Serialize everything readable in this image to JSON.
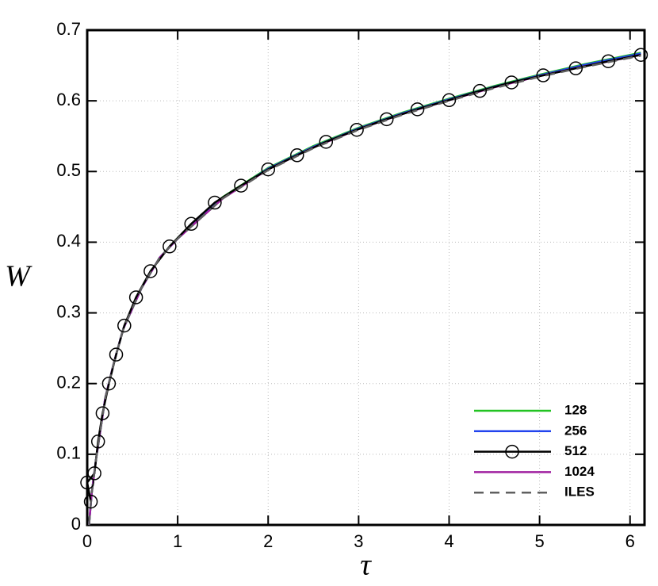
{
  "chart_data": {
    "type": "line",
    "x_label": "τ",
    "y_label": "W",
    "xlim": [
      0,
      6.16
    ],
    "ylim": [
      0,
      0.7
    ],
    "xticks": [
      0,
      1,
      2,
      3,
      4,
      5,
      6
    ],
    "yticks": [
      0,
      0.1,
      0.2,
      0.3,
      0.4,
      0.5,
      0.6,
      0.7
    ],
    "grid": true,
    "legend": "lower right",
    "series": [
      {
        "name": "128",
        "color": "#22c322",
        "style": "solid",
        "x": [
          0.02,
          0.05,
          0.1,
          0.2,
          0.3,
          0.4,
          0.6,
          0.8,
          1,
          1.5,
          2,
          2.5,
          3,
          3.5,
          4,
          4.5,
          5,
          5.5,
          6.12
        ],
        "values": [
          0.0,
          0.045,
          0.095,
          0.18,
          0.232,
          0.278,
          0.335,
          0.378,
          0.406,
          0.464,
          0.505,
          0.536,
          0.562,
          0.584,
          0.603,
          0.621,
          0.637,
          0.652,
          0.668
        ]
      },
      {
        "name": "256",
        "color": "#2244ee",
        "style": "solid",
        "x": [
          0.02,
          0.05,
          0.1,
          0.2,
          0.3,
          0.4,
          0.6,
          0.8,
          1,
          1.5,
          2,
          2.5,
          3,
          3.5,
          4,
          4.5,
          5,
          5.5,
          6.12
        ],
        "values": [
          0.0,
          0.045,
          0.095,
          0.18,
          0.232,
          0.278,
          0.335,
          0.378,
          0.405,
          0.463,
          0.504,
          0.535,
          0.561,
          0.583,
          0.602,
          0.62,
          0.636,
          0.651,
          0.667
        ]
      },
      {
        "name": "512",
        "color": "#000000",
        "style": "solid",
        "marker": "circle",
        "x": [
          0.04,
          0,
          0.08,
          0.12,
          0.17,
          0.24,
          0.32,
          0.41,
          0.54,
          0.7,
          0.91,
          1.15,
          1.41,
          1.7,
          2.0,
          2.32,
          2.64,
          2.98,
          3.31,
          3.65,
          4.0,
          4.34,
          4.69,
          5.04,
          5.4,
          5.76,
          6.12
        ],
        "values": [
          0.033,
          0.06,
          0.073,
          0.118,
          0.158,
          0.2,
          0.241,
          0.282,
          0.322,
          0.359,
          0.394,
          0.426,
          0.456,
          0.48,
          0.503,
          0.523,
          0.542,
          0.559,
          0.574,
          0.588,
          0.601,
          0.614,
          0.626,
          0.636,
          0.646,
          0.656,
          0.665
        ]
      },
      {
        "name": "1024",
        "color": "#a020a0",
        "style": "solid",
        "x": [
          0.02,
          0.05,
          0.1,
          0.2,
          0.3,
          0.4,
          0.6,
          0.8,
          1,
          1.5,
          2,
          2.5,
          3,
          3.5,
          4,
          4.5,
          5,
          5.5,
          6.12
        ],
        "values": [
          0.0,
          0.045,
          0.095,
          0.18,
          0.232,
          0.278,
          0.335,
          0.378,
          0.405,
          0.462,
          0.503,
          0.534,
          0.56,
          0.582,
          0.601,
          0.619,
          0.635,
          0.649,
          0.665
        ]
      },
      {
        "name": "ILES",
        "color": "#606060",
        "style": "dashed",
        "x": [
          0.02,
          0.05,
          0.1,
          0.2,
          0.3,
          0.4,
          0.6,
          0.8,
          1,
          1.5,
          2,
          2.5,
          3,
          3.5,
          4,
          4.5,
          5,
          5.5,
          6.12
        ],
        "values": [
          0.0,
          0.045,
          0.095,
          0.18,
          0.232,
          0.278,
          0.335,
          0.378,
          0.405,
          0.462,
          0.502,
          0.533,
          0.559,
          0.581,
          0.6,
          0.618,
          0.634,
          0.648,
          0.664
        ]
      }
    ]
  }
}
